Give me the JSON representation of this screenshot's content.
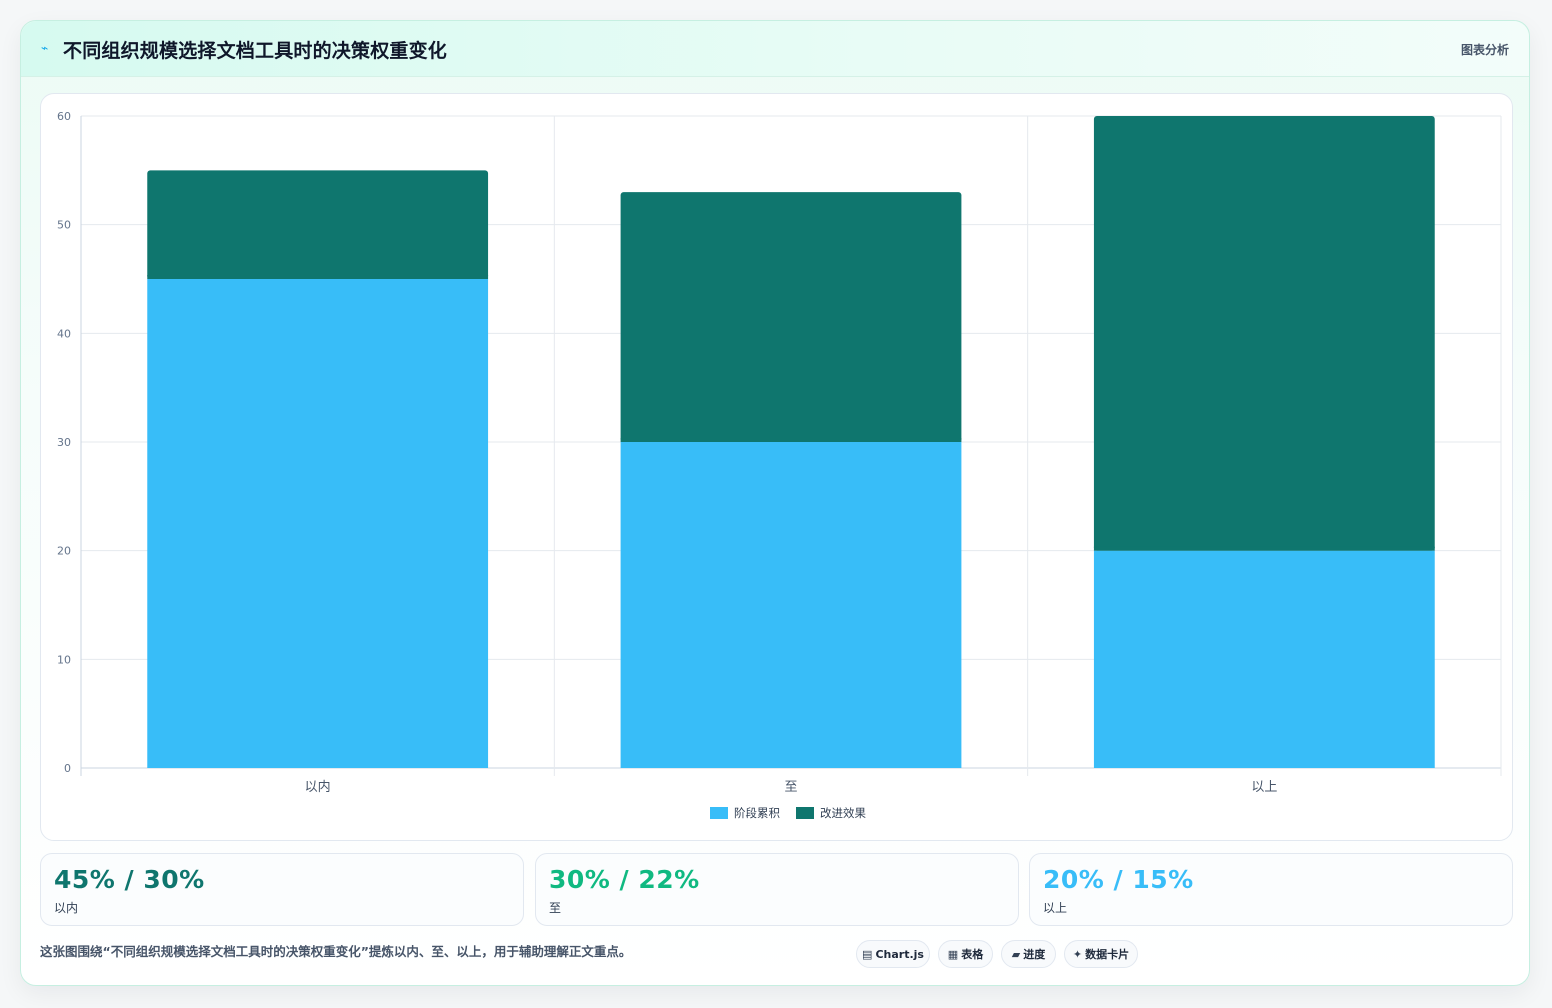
{
  "header": {
    "icon": "sparkline-icon",
    "title": "不同组织规模选择文档工具时的决策权重变化",
    "right_label": "图表分析"
  },
  "chart_data": {
    "type": "bar",
    "stacked": true,
    "categories": [
      "以内",
      "至",
      "以上"
    ],
    "series": [
      {
        "name": "阶段累积",
        "values": [
          45,
          30,
          20
        ],
        "color": "#38bdf8"
      },
      {
        "name": "改进效果",
        "values": [
          10,
          23,
          40
        ],
        "color": "#0f766e"
      }
    ],
    "ylim": [
      0,
      60
    ],
    "yticks": [
      0,
      10,
      20,
      30,
      40,
      50,
      60
    ],
    "grid": true,
    "legend": "bottom"
  },
  "stats": [
    {
      "value": "45% / 30%",
      "label": "以内",
      "color": "#0f766e"
    },
    {
      "value": "30% / 22%",
      "label": "至",
      "color": "#10b981"
    },
    {
      "value": "20% / 15%",
      "label": "以上",
      "color": "#38bdf8"
    }
  ],
  "footnote": "这张图围绕“不同组织规模选择文档工具时的决策权重变化”提炼以内、至、以上，用于辅助理解正文重点。",
  "tags": [
    {
      "icon": "chart-icon",
      "glyph": "▤",
      "label": "Chart.js"
    },
    {
      "icon": "table-icon",
      "glyph": "▦",
      "label": "表格"
    },
    {
      "icon": "progress-icon",
      "glyph": "▰",
      "label": "进度"
    },
    {
      "icon": "sparkle-icon",
      "glyph": "✦",
      "label": "数据卡片"
    }
  ]
}
